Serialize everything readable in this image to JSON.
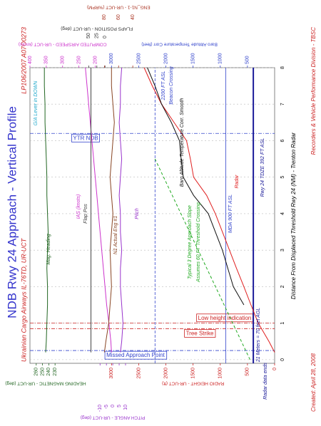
{
  "chart_data": {
    "type": "line",
    "title": "NDB Rwy 24 Approach - Vertical Profile",
    "subtitle": "Ukrainian Cargo Airways IL-76TD, UR-UCT",
    "reference": "LP106/2007 A07O0273",
    "created": "Created: April 28, 2008",
    "credit": "Recorders & Vehicle Performance Division - TBSC",
    "x_label": "Distance From Displaced Threshold Rwy 24 (NM) - Trenton Radar",
    "xlim": [
      -0.1,
      8
    ],
    "xticks": [
      0,
      1,
      2,
      3,
      4,
      5,
      6,
      7,
      8
    ],
    "grid": true,
    "axes": {
      "radio_height": {
        "label": "RADIO HEIGHT - UR-UCT (ft)",
        "lim": [
          4500,
          0
        ],
        "ticks": [
          0,
          500,
          1000,
          1500,
          2000,
          2500,
          3000
        ],
        "color": "#cc2222",
        "side": "left"
      },
      "heading": {
        "label": "HEADING MAGNETIC - UR-UCT (deg)",
        "lim": [
          270,
          -120
        ],
        "ticks": [
          230,
          240,
          250,
          260
        ],
        "color": "#226622",
        "side": "left"
      },
      "pitch": {
        "label": "PITCH ANGLE - UR-UCT (deg)",
        "lim": [
          -65,
          127
        ],
        "ticks": [
          -10,
          -5,
          0,
          5,
          10
        ],
        "color": "#9933cc",
        "side": "left"
      },
      "baro": {
        "label": "Baro Altitude Temperature Corr (feet)",
        "lim": [
          4500,
          0
        ],
        "ticks": [
          500,
          1000,
          1500,
          2000,
          2500,
          3000
        ],
        "color": "#3344cc",
        "side": "right"
      },
      "airspeed": {
        "label": "COMPUTED AIRSPEED - UR-UCT (knots)",
        "lim": [
          400,
          -350
        ],
        "ticks": [
          200,
          250,
          300,
          350,
          400
        ],
        "color": "#cc33cc",
        "side": "right"
      },
      "flaps": {
        "label": "FLAPS POSITION - UR-UCT (deg)",
        "lim": [
          230,
          -520
        ],
        "ticks": [
          0,
          25,
          50
        ],
        "color": "#333333",
        "side": "right"
      },
      "n1": {
        "label": "ENG_N1-1 - UR-UCT (%RPM)",
        "lim": [
          185,
          -160
        ],
        "ticks": [
          40,
          60,
          80
        ],
        "color": "#aa3322",
        "side": "right"
      }
    },
    "x": [
      0.2,
      0.5,
      1,
      1.5,
      2,
      2.5,
      3,
      3.5,
      4,
      4.5,
      5,
      5.5,
      6,
      6.5,
      7,
      7.5,
      8
    ],
    "series": [
      {
        "name": "Radar",
        "axis": "radio_height",
        "color": "#e02020",
        "values": [
          0,
          105,
          300,
          435,
          565,
          700,
          830,
          960,
          1090,
          1250,
          1490,
          1550,
          1620,
          1850,
          2080,
          2250,
          2400
        ]
      },
      {
        "name": "Baro Altitude Temperature Corr. Smooth",
        "axis": "baro",
        "color": "#111111",
        "values": [
          null,
          null,
          null,
          565,
          760,
          860,
          960,
          1090,
          1220,
          1490,
          1680,
          1720,
          1750,
          1900,
          2080,
          2200,
          2340
        ]
      },
      {
        "name": "Typical 3 Degree Approach Slope",
        "axis": "baro",
        "color": "#22aa22",
        "dash": true,
        "x": [
          0,
          5.5
        ],
        "values": [
          452,
          2200
        ]
      },
      {
        "name": "IAS (knots)",
        "axis": "airspeed",
        "color": "#cc33cc",
        "values": [
          150,
          152,
          158,
          165,
          170,
          175,
          180,
          185,
          190,
          195,
          200,
          205,
          210,
          215,
          220,
          225,
          230
        ]
      },
      {
        "name": "Mag. Heading",
        "axis": "heading",
        "color": "#226622",
        "values": [
          245,
          244,
          243,
          242,
          242,
          243,
          242,
          241,
          242,
          243,
          243,
          244,
          245,
          246,
          246,
          247,
          247
        ]
      },
      {
        "name": "Flap Pos",
        "axis": "flaps",
        "color": "#444444",
        "values": [
          43,
          43,
          43,
          43,
          43,
          43,
          43,
          43,
          43,
          43,
          43,
          43,
          43,
          43,
          43,
          43,
          43
        ]
      },
      {
        "name": "N1 Actual Eng #1",
        "axis": "n1",
        "color": "#884422",
        "values": [
          80,
          78,
          74,
          72,
          70,
          71,
          72,
          70,
          68,
          70,
          72,
          70,
          68,
          66,
          68,
          70,
          70
        ]
      },
      {
        "name": "Pitch",
        "axis": "pitch",
        "color": "#9933cc",
        "values": [
          6,
          7,
          8,
          7,
          6,
          6,
          7,
          6,
          6,
          5,
          6,
          7,
          6,
          5,
          6,
          6,
          7
        ]
      }
    ],
    "distance_marks": [
      {
        "label": "Missed Approach Point",
        "value": 0.25,
        "color": "#3344cc"
      },
      {
        "label": "Tree Strike",
        "value": 0.85,
        "color": "#cc2222"
      },
      {
        "label": "Low height indication",
        "value": 1.0,
        "color": "#cc2222"
      },
      {
        "label": "YTR NDB",
        "value": 6.2,
        "color": "#3344cc"
      }
    ],
    "altitude_marks": [
      {
        "label": "MDA 900 FT ASL",
        "value": 900,
        "axis": "baro",
        "color": "#3344cc"
      },
      {
        "label": "2200 FT ASL",
        "value": 2200,
        "axis": "baro",
        "color": "#3344cc",
        "note": "Beacon Crossing"
      },
      {
        "label": "Rwy 24 TDZE 392 FT ASL",
        "value": 392,
        "axis": "baro",
        "color": "#1a1a99"
      }
    ],
    "annotations": [
      "Assumes 60 FT Threshold Crossing",
      "21 Meters = 70 feet AGL",
      "Radar data ends",
      "G/A Lever in DOWN"
    ]
  }
}
